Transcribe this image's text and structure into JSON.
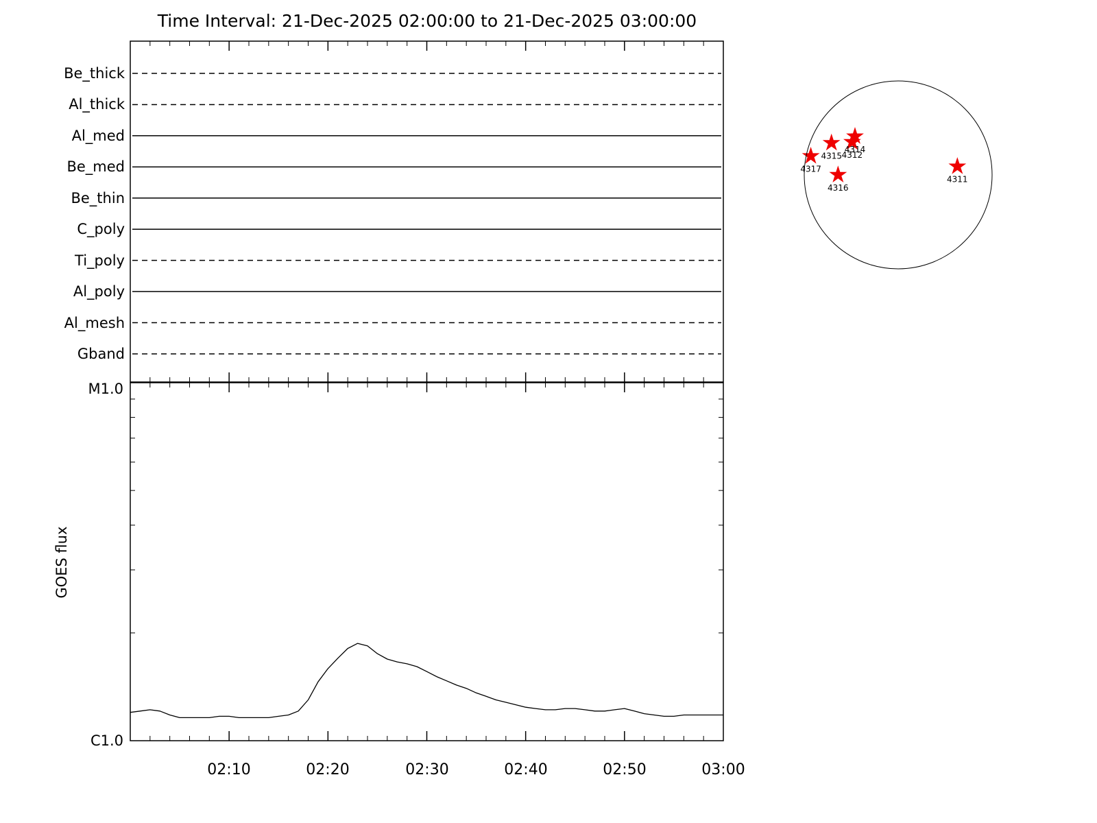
{
  "title": "Time Interval: 21-Dec-2025 02:00:00 to 21-Dec-2025 03:00:00",
  "colors": {
    "background": "#ffffff",
    "axis": "#000000",
    "curve": "#000000",
    "star": "#ee0000"
  },
  "chart_data": [
    {
      "type": "line",
      "title": "Filter timeline panel",
      "x_range_minutes": [
        0,
        60
      ],
      "rows": [
        {
          "label": "Be_thick",
          "linestyle": "dashed"
        },
        {
          "label": "Al_thick",
          "linestyle": "dashed"
        },
        {
          "label": "Al_med",
          "linestyle": "solid"
        },
        {
          "label": "Be_med",
          "linestyle": "solid"
        },
        {
          "label": "Be_thin",
          "linestyle": "solid"
        },
        {
          "label": "C_poly",
          "linestyle": "solid"
        },
        {
          "label": "Ti_poly",
          "linestyle": "dashed"
        },
        {
          "label": "Al_poly",
          "linestyle": "solid"
        },
        {
          "label": "Al_mesh",
          "linestyle": "dashed"
        },
        {
          "label": "Gband",
          "linestyle": "dashed"
        }
      ]
    },
    {
      "type": "line",
      "ylabel": "GOES flux",
      "yscale": "log",
      "y_top_label": "M1.0",
      "y_bottom_label": "C1.0",
      "x_tick_labels": [
        "02:10",
        "02:20",
        "02:30",
        "02:40",
        "02:50",
        "03:00"
      ],
      "x_tick_minutes": [
        10,
        20,
        30,
        40,
        50,
        60
      ],
      "series": [
        {
          "name": "GOES flux",
          "x_minutes": [
            0,
            1,
            2,
            3,
            4,
            5,
            6,
            7,
            8,
            9,
            10,
            11,
            12,
            13,
            14,
            15,
            16,
            17,
            18,
            19,
            20,
            21,
            22,
            23,
            24,
            25,
            26,
            27,
            28,
            29,
            30,
            31,
            32,
            33,
            34,
            35,
            36,
            37,
            38,
            39,
            40,
            41,
            42,
            43,
            44,
            45,
            46,
            47,
            48,
            49,
            50,
            51,
            52,
            53,
            54,
            55,
            56,
            57,
            58,
            59,
            60
          ],
          "flux_c_units": [
            1.2,
            1.21,
            1.22,
            1.21,
            1.18,
            1.16,
            1.16,
            1.16,
            1.16,
            1.17,
            1.17,
            1.16,
            1.16,
            1.16,
            1.16,
            1.17,
            1.18,
            1.21,
            1.3,
            1.46,
            1.59,
            1.7,
            1.81,
            1.87,
            1.84,
            1.75,
            1.69,
            1.66,
            1.64,
            1.61,
            1.56,
            1.51,
            1.47,
            1.43,
            1.4,
            1.36,
            1.33,
            1.3,
            1.28,
            1.26,
            1.24,
            1.23,
            1.22,
            1.22,
            1.23,
            1.23,
            1.22,
            1.21,
            1.21,
            1.22,
            1.23,
            1.21,
            1.19,
            1.18,
            1.17,
            1.17,
            1.18,
            1.18,
            1.18,
            1.18,
            1.18
          ]
        }
      ]
    }
  ],
  "sun_map": {
    "regions": [
      {
        "label": "4317",
        "x_r": -0.93,
        "y_r": 0.2
      },
      {
        "label": "4315",
        "x_r": -0.71,
        "y_r": 0.34
      },
      {
        "label": "4314",
        "x_r": -0.46,
        "y_r": 0.41
      },
      {
        "label": "4312",
        "x_r": -0.49,
        "y_r": 0.35
      },
      {
        "label": "4316",
        "x_r": -0.64,
        "y_r": 0.0
      },
      {
        "label": "4311",
        "x_r": 0.63,
        "y_r": 0.09
      }
    ]
  }
}
